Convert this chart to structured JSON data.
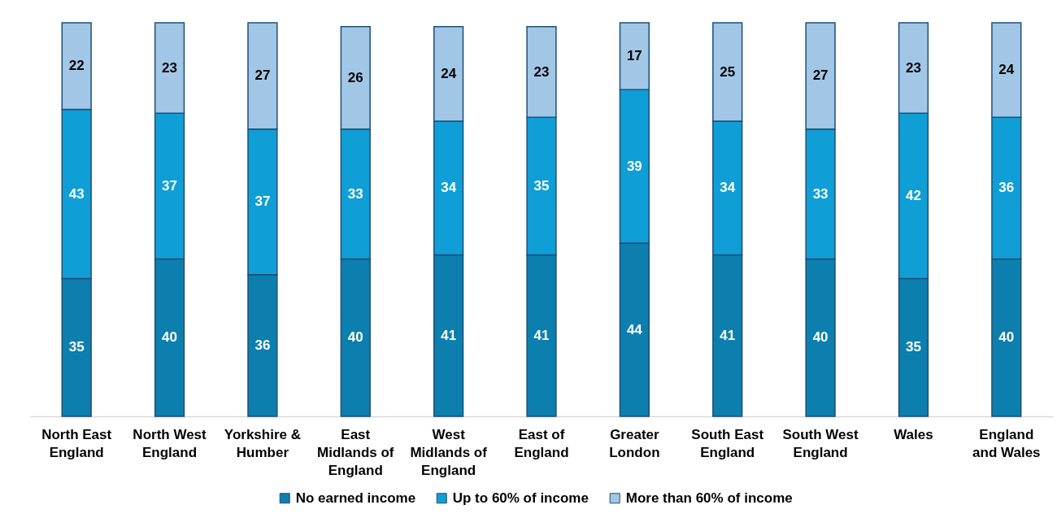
{
  "chart_data": {
    "type": "bar",
    "stacked": true,
    "categories": [
      "North East England",
      "North West England",
      "Yorkshire & Humber",
      "East Midlands of England",
      "West Midlands of England",
      "East of England",
      "Greater London",
      "South East England",
      "South West England",
      "Wales",
      "England and Wales"
    ],
    "series": [
      {
        "name": "No earned income",
        "color": "#0c7fae",
        "values": [
          35,
          40,
          36,
          40,
          41,
          41,
          44,
          41,
          40,
          35,
          40
        ]
      },
      {
        "name": "Up to 60% of income",
        "color": "#109ed6",
        "values": [
          43,
          37,
          37,
          33,
          34,
          35,
          39,
          34,
          33,
          42,
          36
        ]
      },
      {
        "name": "More than 60% of income",
        "color": "#a2c7e6",
        "values": [
          22,
          23,
          27,
          26,
          24,
          23,
          17,
          25,
          27,
          23,
          24
        ]
      }
    ],
    "ylim": [
      0,
      100
    ],
    "data_labels": true,
    "legend": "bottom",
    "tick_labels": "x"
  }
}
